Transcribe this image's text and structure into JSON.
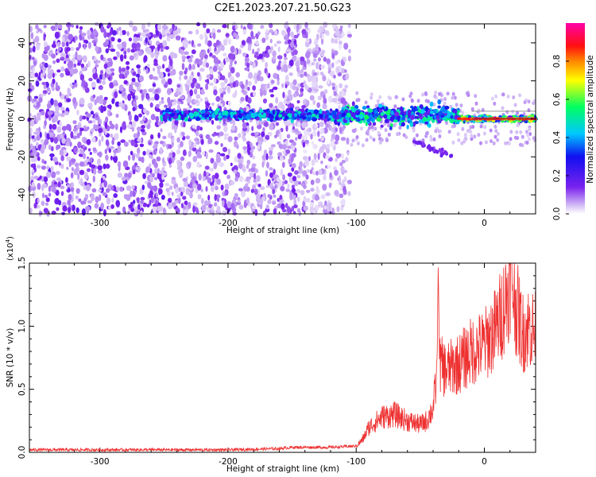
{
  "figure_title": "C2E1.2023.207.21.50.G23",
  "colors": {
    "background": "#ffffff",
    "snr_line": "#ee3030",
    "axes": "#000000"
  },
  "chart_data": [
    {
      "type": "heatmap",
      "title": "C2E1.2023.207.21.50.G23",
      "xlabel": "Height of straight line (km)",
      "ylabel": "Frequency (Hz)",
      "xlim": [
        -355,
        40
      ],
      "ylim": [
        -50,
        50
      ],
      "xticks": [
        -300,
        -200,
        -100,
        0
      ],
      "xtick_labels": [
        "-300",
        "-200",
        "-100",
        "0"
      ],
      "yticks": [
        -40,
        -20,
        0,
        20,
        40
      ],
      "ytick_labels": [
        "-40",
        "-20",
        "0",
        "20",
        "40"
      ],
      "colorbar": {
        "label": "Normalized spectral amplitude",
        "range": [
          0.0,
          1.0
        ],
        "ticks": [
          0.0,
          0.2,
          0.4,
          0.6,
          0.8
        ],
        "tick_labels": [
          "0.0",
          "0.2",
          "0.4",
          "0.6",
          "0.8"
        ],
        "colormap": "purple-blue-cyan-green-yellow-red-magenta"
      },
      "features": {
        "noise_region_x": [
          -355,
          -105
        ],
        "signal_track_x": [
          -252,
          40
        ],
        "signal_track_freq_hz": 2,
        "secondary_branch": {
          "x": [
            -55,
            -25
          ],
          "freq_hz": [
            -12,
            -20
          ]
        }
      }
    },
    {
      "type": "line",
      "xlabel": "Height of straight line (km)",
      "ylabel": "SNR (10 * v/v)",
      "multiplier_label": "(x10",
      "multiplier_exp": "4",
      "multiplier_close": ")",
      "xlim": [
        -355,
        40
      ],
      "ylim": [
        0,
        1.5
      ],
      "xticks": [
        -300,
        -200,
        -100,
        0
      ],
      "xtick_labels": [
        "-300",
        "-200",
        "-100",
        "0"
      ],
      "yticks": [
        0.0,
        0.5,
        1.0,
        1.5
      ],
      "ytick_labels": [
        "0.0",
        "0.5",
        "1.0",
        "1.5"
      ],
      "series": [
        {
          "color": "#ee3030",
          "x": [
            -355,
            -300,
            -250,
            -200,
            -160,
            -150,
            -120,
            -100,
            -95,
            -90,
            -80,
            -70,
            -60,
            -50,
            -45,
            -40,
            -37,
            -36,
            -35,
            -30,
            -20,
            -10,
            0,
            10,
            18,
            20,
            25,
            30,
            35,
            40
          ],
          "y": [
            0.02,
            0.02,
            0.02,
            0.02,
            0.03,
            0.04,
            0.04,
            0.05,
            0.1,
            0.2,
            0.28,
            0.3,
            0.25,
            0.22,
            0.25,
            0.35,
            0.6,
            1.5,
            0.7,
            0.65,
            0.7,
            0.8,
            0.85,
            1.0,
            1.25,
            1.45,
            1.15,
            0.95,
            1.0,
            0.95
          ]
        }
      ]
    }
  ]
}
